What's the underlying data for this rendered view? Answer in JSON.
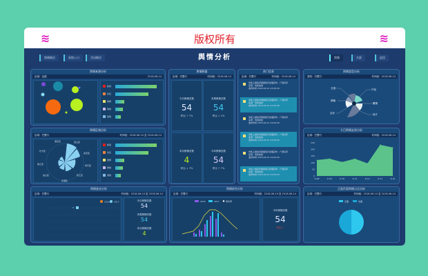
{
  "header": {
    "title": "版权所有",
    "left_icon": "wind-icon",
    "right_icon": "wind-icon"
  },
  "dashboard": {
    "title": "舆情分析",
    "nav_left": [
      "舆情概况",
      "采购入口",
      "活动概况"
    ],
    "nav_right": [
      "舆情",
      "大屏",
      "返回"
    ]
  },
  "panels": {
    "source": {
      "title": "舆情来源分析",
      "filter": "区域：全国",
      "date": "2018-06-14",
      "bubbles": [
        "新闻",
        "论坛",
        "微博",
        "微信",
        "其他"
      ],
      "bars": [
        {
          "label": "新闻",
          "value": 100,
          "color": "#e02020"
        },
        {
          "label": "论坛",
          "value": 80,
          "color": "#f08040"
        },
        {
          "label": "微博",
          "value": 22,
          "color": "#e8e070"
        },
        {
          "label": "微信",
          "value": 18,
          "color": "#c8b8e8"
        },
        {
          "label": "其他",
          "value": 14,
          "color": "#80b8e0"
        }
      ]
    },
    "region": {
      "title": "舆情区域分析",
      "filter": "区域：巴蜀行",
      "date": "时间段：2018-06-10 至 2018-06-14",
      "axis": [
        "浦东区",
        "宝山区",
        "嘉定区",
        "闵行区",
        "松江区",
        "青浦区",
        "金山区",
        "徐汇区",
        "长宁区"
      ],
      "bars": [
        {
          "label": "新闻",
          "value": 100,
          "color": "#e02020"
        },
        {
          "label": "论坛",
          "value": 80,
          "color": "#f08040"
        },
        {
          "label": "微博",
          "value": 22,
          "color": "#e8e070"
        },
        {
          "label": "微信",
          "value": 18,
          "color": "#c8b8e8"
        },
        {
          "label": "其他",
          "value": 14,
          "color": "#80b8e0"
        }
      ]
    },
    "stats": {
      "title": "舆情数量",
      "filter": "区域：巴蜀行",
      "date": "时间段：2018-06-14",
      "items": [
        {
          "label": "今日舆情总数",
          "value": "54",
          "change": "环比 ↑ 7%",
          "color": "#e0e8ff"
        },
        {
          "label": "本周舆情总数",
          "value": "54",
          "change": "环比 ↓ 1%",
          "color": "#40c8f0"
        },
        {
          "label": "本月舆情总数",
          "value": "4",
          "change": "环比 ↓ 7%",
          "color": "#b8f020"
        },
        {
          "label": "今年舆情总数",
          "value": "54",
          "change": "环比 ↑ 7%",
          "color": "#d8c8f8"
        }
      ]
    },
    "hot": {
      "title": "热门信息",
      "filter": "区域：巴蜀行",
      "date": "时间段：2018-06-14",
      "items": [
        {
          "text": "市民上报的问题舆情已处理完毕，广受好评",
          "sub": "来源：市民热线",
          "meta": "发布时间 2018-06-14 14:00:00"
        },
        {
          "text": "市民上报的问题舆情已处理完毕，广受好评",
          "sub": "来源：市民热线",
          "meta": "发布时间 2018-06-14 14:00:00"
        },
        {
          "text": "市民上报的问题舆情已处理完毕，广受好评",
          "sub": "来源：市民热线",
          "meta": "发布时间 2018-06-14 14:00:00"
        },
        {
          "text": "市民上报的问题舆情已处理完毕，广受好评",
          "sub": "来源：市民热线",
          "meta": "发布时间 2018-06-14 14:00:00"
        },
        {
          "text": "市民上报的问题舆情已处理完毕，广受好评",
          "sub": "来源：市民热线",
          "meta": "发布时间 2018-06-14 14:00:00"
        },
        {
          "text": "市民上报的问题舆情已处理完毕，广受好评",
          "sub": "来源：市民热线",
          "meta": "发布时间 2018-06-14 14:00:00"
        }
      ]
    },
    "type": {
      "title": "舆情类型分析",
      "filter": "类别：巴蜀行",
      "date": "时间段：2018-06-14",
      "labels": [
        "交通",
        "环保",
        "教育",
        "医疗",
        "治安",
        "其他"
      ]
    },
    "trend": {
      "title": "七日舆情走势分析",
      "filter": "区域：巴蜀行",
      "date": "时间段：2018-06-14"
    },
    "scatter": {
      "title": "舆情变化分析",
      "filter": "区域：巴蜀行",
      "date": "时间段：2018-06-10 至 2018-06-14",
      "legend": [
        "2016",
        "2017"
      ],
      "stats": [
        {
          "label": "今日舆情总数",
          "value": "54"
        },
        {
          "label": "本周舆情总数",
          "value": "54"
        },
        {
          "label": "本月舆情总数",
          "value": "4"
        }
      ]
    },
    "monthly": {
      "title": "舆情综合分析",
      "filter": "区域：巴蜀行",
      "date": "时间段：2018-06-10 至 2018-06-14",
      "legend": [
        "2016",
        "2017",
        "增长率"
      ],
      "stat": {
        "label": "今年舆情总数",
        "value": "54",
        "change": "环比 ↑"
      }
    },
    "ratio": {
      "title": "正面负面舆情占比分析",
      "filter": "区域：巴蜀行",
      "date": "时间段：2018-06-10 至 2018-06-14",
      "legend": [
        "正面",
        "负面"
      ]
    }
  },
  "chart_data": [
    {
      "type": "area",
      "title": "七日舆情走势分析",
      "categories": [
        "6-08",
        "6-09",
        "6-10",
        "6-11",
        "6-12",
        "6-13",
        "6-14"
      ],
      "values": [
        120,
        130,
        105,
        130,
        95,
        235,
        215
      ],
      "ylim": [
        0,
        250
      ],
      "yticks": [
        0,
        50,
        100,
        150,
        200,
        250
      ],
      "color": "#5cc48a"
    },
    {
      "type": "pie",
      "title": "正面负面舆情占比分析",
      "categories": [
        "正面",
        "负面"
      ],
      "values": [
        50,
        50
      ],
      "colors": [
        "#2ec8ef",
        "#1aa8d8"
      ]
    }
  ]
}
